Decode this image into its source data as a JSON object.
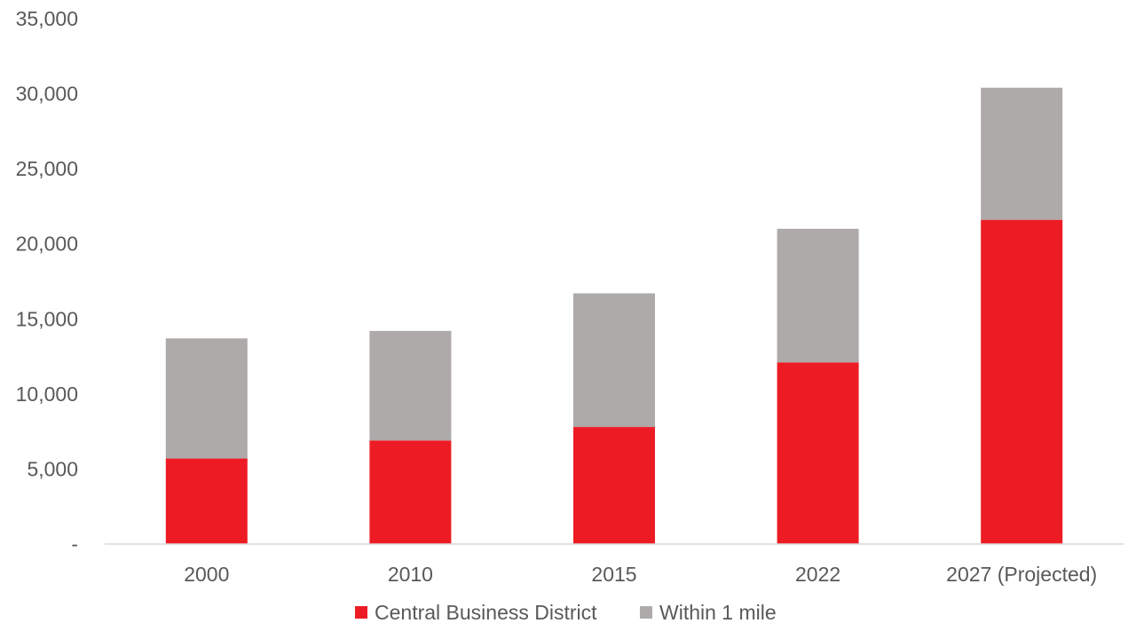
{
  "chart_data": {
    "type": "bar",
    "stacked": true,
    "categories": [
      "2000",
      "2010",
      "2015",
      "2022",
      "2027 (Projected)"
    ],
    "series": [
      {
        "name": "Central Business District",
        "color": "#ED1C24",
        "values": [
          5700,
          6900,
          7800,
          12100,
          21600
        ]
      },
      {
        "name": "Within 1 mile",
        "color": "#AEAAAA",
        "values": [
          8000,
          7300,
          8900,
          8900,
          8800
        ]
      }
    ],
    "ylim": [
      0,
      35000
    ],
    "yticks": [
      0,
      5000,
      10000,
      15000,
      20000,
      25000,
      30000,
      35000
    ],
    "ytick_labels": [
      "-",
      "5,000",
      "10,000",
      "15,000",
      "20,000",
      "25,000",
      "30,000",
      "35,000"
    ],
    "grid": false,
    "legend": "bottom",
    "title": "",
    "xlabel": "",
    "ylabel": ""
  }
}
